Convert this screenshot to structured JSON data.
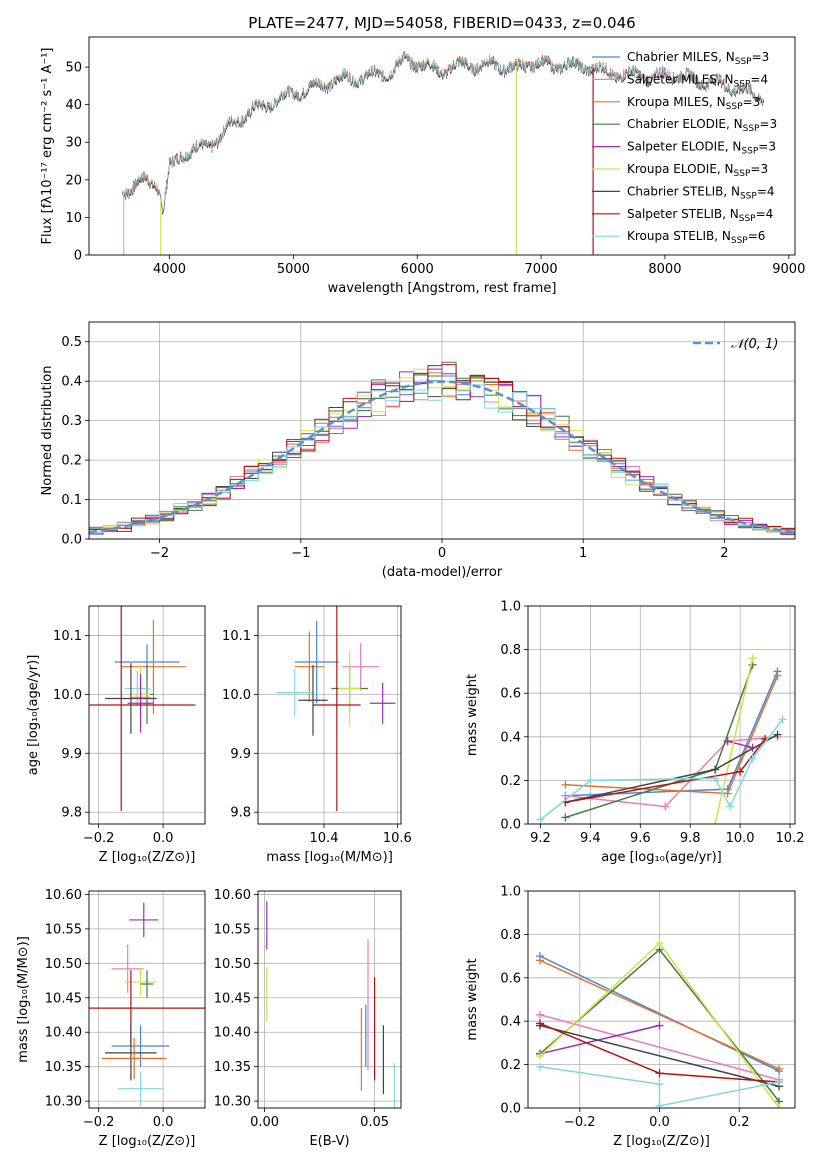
{
  "colors": {
    "chabrier_miles": "#4a86d6",
    "salpeter_miles": "#e87fb5",
    "kroupa_miles": "#e0742a",
    "chabrier_elodie": "#3f7f3f",
    "salpeter_elodie": "#9b2fb3",
    "kroupa_elodie": "#d4e04a",
    "chabrier_stelib": "#444444",
    "salpeter_stelib": "#b01515",
    "kroupa_stelib": "#7fd8e0"
  },
  "chart_data": [
    {
      "id": "spectrum",
      "type": "line",
      "title": "PLATE=2477, MJD=54058, FIBERID=0433, z=0.046",
      "xlabel": "wavelength [Angstrom, rest frame]",
      "ylabel": "Flux [fλ10⁻¹⁷ erg cm⁻² s⁻¹ A⁻¹]",
      "xlim": [
        3350,
        9050
      ],
      "ylim": [
        0,
        58
      ],
      "xticks": [
        4000,
        5000,
        6000,
        7000,
        8000,
        9000
      ],
      "yticks": [
        0,
        10,
        20,
        30,
        40,
        50
      ],
      "grid": false,
      "legend_position": "right",
      "legend": [
        "Chabrier MILES, N_SSP=3",
        "Salpeter MILES, N_SSP=4",
        "Kroupa MILES, N_SSP=3",
        "Chabrier ELODIE, N_SSP=3",
        "Salpeter ELODIE, N_SSP=3",
        "Kroupa ELODIE, N_SSP=3",
        "Chabrier STELIB, N_SSP=4",
        "Salpeter STELIB, N_SSP=4",
        "Kroupa STELIB, N_SSP=6"
      ],
      "continuum": {
        "x": [
          3620,
          3700,
          3800,
          3900,
          3950,
          4000,
          4100,
          4200,
          4300,
          4400,
          4500,
          4600,
          4700,
          4800,
          4900,
          5000,
          5100,
          5200,
          5300,
          5400,
          5500,
          5600,
          5700,
          5800,
          5900,
          6000,
          6100,
          6200,
          6300,
          6400,
          6500,
          6600,
          6700,
          6800,
          6900,
          7000,
          7100,
          7200,
          7300,
          7400,
          7500,
          7600,
          7700,
          7800,
          7900,
          8000,
          8100,
          8200,
          8300,
          8400,
          8500,
          8600,
          8700,
          8800
        ],
        "y": [
          17,
          18,
          20,
          19,
          12,
          23,
          27,
          28,
          29,
          31,
          35,
          37,
          39,
          40,
          42,
          43,
          44,
          45,
          46,
          47,
          47,
          47.5,
          48,
          49,
          52,
          51,
          50,
          49,
          50,
          51,
          50,
          51,
          50,
          49.5,
          51,
          51,
          50,
          51,
          50,
          50,
          49,
          48,
          48,
          48,
          47,
          48,
          48,
          47,
          46,
          46,
          45,
          44,
          43,
          42
        ]
      },
      "drop_lines": [
        {
          "x": 3630,
          "series": "kroupa_stelib"
        },
        {
          "x": 3930,
          "series": "kroupa_elodie"
        },
        {
          "x": 6800,
          "series": "kroupa_elodie"
        },
        {
          "x": 7420,
          "series": "salpeter_stelib"
        }
      ]
    },
    {
      "id": "residuals",
      "type": "histogram",
      "xlabel": "(data-model)/error",
      "ylabel": "Normed distribution",
      "xlim": [
        -2.5,
        2.5
      ],
      "ylim": [
        0,
        0.55
      ],
      "xticks": [
        -2,
        -1,
        0,
        1,
        2
      ],
      "yticks": [
        0.0,
        0.1,
        0.2,
        0.3,
        0.4,
        0.5
      ],
      "grid": true,
      "legend_position": "top-right",
      "legend": [
        "𝒩(0, 1)"
      ],
      "bin_width": 0.1,
      "range": [
        -2.5,
        2.5
      ],
      "reference": {
        "name": "𝒩(0, 1)",
        "mean": 0,
        "sigma": 1,
        "style": "dashed"
      }
    },
    {
      "id": "age_vs_z",
      "type": "errorbar",
      "xlabel": "Z [log₁₀(Z/Z⊙)]",
      "ylabel": "age  [log₁₀(age/yr)]",
      "xlim": [
        -0.23,
        0.13
      ],
      "ylim": [
        9.78,
        10.15
      ],
      "xticks": [
        -0.2,
        0.0
      ],
      "yticks": [
        9.8,
        9.9,
        10.0,
        10.1
      ],
      "grid": true,
      "points": [
        {
          "series": "chabrier_miles",
          "x": -0.05,
          "y": 10.055,
          "xerr": 0.1,
          "yerr": 0.03
        },
        {
          "series": "kroupa_miles",
          "x": -0.03,
          "y": 10.047,
          "xerr": 0.1,
          "yerr": 0.08
        },
        {
          "series": "chabrier_elodie",
          "x": -0.05,
          "y": 10.0,
          "xerr": 0.02,
          "yerr": 0.05
        },
        {
          "series": "kroupa_elodie",
          "x": -0.07,
          "y": 10.0,
          "xerr": 0.03,
          "yerr": 0.05
        },
        {
          "series": "kroupa_stelib",
          "x": -0.08,
          "y": 10.01,
          "xerr": 0.04,
          "yerr": 0.03
        },
        {
          "series": "salpeter_miles",
          "x": -0.07,
          "y": 9.995,
          "xerr": 0.03,
          "yerr": 0.03
        },
        {
          "series": "chabrier_stelib",
          "x": -0.1,
          "y": 9.993,
          "xerr": 0.08,
          "yerr": 0.06
        },
        {
          "series": "salpeter_elodie",
          "x": -0.07,
          "y": 9.985,
          "xerr": 0.04,
          "yerr": 0.05
        },
        {
          "series": "salpeter_stelib",
          "x": -0.13,
          "y": 9.982,
          "xerr": 0.23,
          "yerr": 0.18
        }
      ]
    },
    {
      "id": "age_vs_mass",
      "type": "errorbar",
      "xlabel": "mass [log₁₀(M/M⊙)]",
      "ylabel": "",
      "xlim": [
        10.22,
        10.61
      ],
      "ylim": [
        9.78,
        10.15
      ],
      "xticks": [
        10.4,
        10.6
      ],
      "yticks": [
        9.8,
        9.9,
        10.0,
        10.1
      ],
      "grid": true,
      "points": [
        {
          "series": "chabrier_miles",
          "x": 10.38,
          "y": 10.055,
          "xerr": 0.06,
          "yerr": 0.07
        },
        {
          "series": "kroupa_miles",
          "x": 10.36,
          "y": 10.047,
          "xerr": 0.04,
          "yerr": 0.06
        },
        {
          "series": "salpeter_miles",
          "x": 10.5,
          "y": 10.047,
          "xerr": 0.05,
          "yerr": 0.04
        },
        {
          "series": "chabrier_elodie",
          "x": 10.47,
          "y": 10.01,
          "xerr": 0.05,
          "yerr": 0.04
        },
        {
          "series": "kroupa_elodie",
          "x": 10.47,
          "y": 10.01,
          "xerr": 0.03,
          "yerr": 0.065
        },
        {
          "series": "kroupa_stelib",
          "x": 10.32,
          "y": 10.003,
          "xerr": 0.05,
          "yerr": 0.04
        },
        {
          "series": "chabrier_stelib",
          "x": 10.37,
          "y": 9.99,
          "xerr": 0.04,
          "yerr": 0.06
        },
        {
          "series": "salpeter_elodie",
          "x": 10.56,
          "y": 9.985,
          "xerr": 0.035,
          "yerr": 0.035
        },
        {
          "series": "salpeter_stelib",
          "x": 10.435,
          "y": 9.982,
          "xerr": 0.065,
          "yerr": 0.18
        }
      ]
    },
    {
      "id": "weight_vs_age",
      "type": "line",
      "xlabel": "age  [log₁₀(age/yr)]",
      "ylabel": "mass weight",
      "xlim": [
        9.15,
        10.22
      ],
      "ylim": [
        0,
        1.0
      ],
      "xticks": [
        9.2,
        9.4,
        9.6,
        9.8,
        10.0,
        10.2
      ],
      "yticks": [
        0.0,
        0.2,
        0.4,
        0.6,
        0.8,
        1.0
      ],
      "grid": true,
      "series": [
        {
          "key": "chabrier_miles",
          "x": [
            9.3,
            9.95,
            10.15
          ],
          "y": [
            0.13,
            0.16,
            0.7
          ]
        },
        {
          "key": "salpeter_miles",
          "x": [
            9.3,
            9.7,
            9.95,
            10.15
          ],
          "y": [
            0.13,
            0.08,
            0.38,
            0.4
          ]
        },
        {
          "key": "kroupa_miles",
          "x": [
            9.3,
            9.95,
            10.15
          ],
          "y": [
            0.18,
            0.14,
            0.68
          ]
        },
        {
          "key": "chabrier_elodie",
          "x": [
            9.3,
            9.9,
            10.05
          ],
          "y": [
            0.03,
            0.25,
            0.73
          ]
        },
        {
          "key": "salpeter_elodie",
          "x": [
            9.95,
            10.05
          ],
          "y": [
            0.38,
            0.35
          ]
        },
        {
          "key": "kroupa_elodie",
          "x": [
            9.9,
            10.05
          ],
          "y": [
            0.0,
            0.76
          ]
        },
        {
          "key": "chabrier_stelib",
          "x": [
            9.3,
            9.9,
            10.15
          ],
          "y": [
            0.1,
            0.25,
            0.41
          ]
        },
        {
          "key": "salpeter_stelib",
          "x": [
            9.3,
            10.0,
            10.1
          ],
          "y": [
            0.1,
            0.24,
            0.39
          ]
        },
        {
          "key": "kroupa_stelib",
          "x": [
            9.2,
            9.4,
            9.9,
            9.96,
            10.05,
            10.17
          ],
          "y": [
            0.02,
            0.2,
            0.21,
            0.08,
            0.3,
            0.48
          ]
        }
      ]
    },
    {
      "id": "mass_vs_z",
      "type": "errorbar",
      "xlabel": "Z [log₁₀(Z/Z⊙)]",
      "ylabel": "mass [log₁₀(M/M⊙)]",
      "xlim": [
        -0.23,
        0.13
      ],
      "ylim": [
        10.29,
        10.605
      ],
      "xticks": [
        -0.2,
        0.0
      ],
      "yticks": [
        10.3,
        10.35,
        10.4,
        10.45,
        10.5,
        10.55,
        10.6
      ],
      "grid": true,
      "points": [
        {
          "series": "salpeter_elodie",
          "x": -0.06,
          "y": 10.563,
          "xerr": 0.045,
          "yerr": 0.025
        },
        {
          "series": "salpeter_miles",
          "x": -0.11,
          "y": 10.492,
          "xerr": 0.05,
          "yerr": 0.035
        },
        {
          "series": "kroupa_elodie",
          "x": -0.07,
          "y": 10.473,
          "xerr": 0.05,
          "yerr": 0.02
        },
        {
          "series": "chabrier_elodie",
          "x": -0.05,
          "y": 10.47,
          "xerr": 0.02,
          "yerr": 0.02
        },
        {
          "series": "salpeter_stelib",
          "x": -0.1,
          "y": 10.435,
          "xerr": 0.23,
          "yerr": 0.055
        },
        {
          "series": "chabrier_miles",
          "x": -0.07,
          "y": 10.38,
          "xerr": 0.09,
          "yerr": 0.03
        },
        {
          "series": "chabrier_stelib",
          "x": -0.1,
          "y": 10.37,
          "xerr": 0.08,
          "yerr": 0.04
        },
        {
          "series": "kroupa_miles",
          "x": -0.09,
          "y": 10.362,
          "xerr": 0.1,
          "yerr": 0.03
        },
        {
          "series": "kroupa_stelib",
          "x": -0.07,
          "y": 10.318,
          "xerr": 0.07,
          "yerr": 0.025
        }
      ]
    },
    {
      "id": "mass_vs_ebv",
      "type": "errorbar",
      "xlabel": "E(B-V)",
      "ylabel": "",
      "xlim": [
        -0.003,
        0.062
      ],
      "ylim": [
        10.29,
        10.605
      ],
      "xticks": [
        0.0,
        0.05
      ],
      "yticks": [
        10.3,
        10.35,
        10.4,
        10.45,
        10.5,
        10.55,
        10.6
      ],
      "grid": true,
      "points": [
        {
          "series": "salpeter_elodie",
          "x": 0.001,
          "y": 10.555,
          "xerr": 0,
          "yerr": 0.035
        },
        {
          "series": "kroupa_elodie",
          "x": 0.001,
          "y": 10.455,
          "xerr": 0,
          "yerr": 0.04
        },
        {
          "series": "chabrier_miles",
          "x": 0.046,
          "y": 10.395,
          "xerr": 0,
          "yerr": 0.045
        },
        {
          "series": "salpeter_miles",
          "x": 0.047,
          "y": 10.44,
          "xerr": 0,
          "yerr": 0.095
        },
        {
          "series": "kroupa_miles",
          "x": 0.044,
          "y": 10.375,
          "xerr": 0,
          "yerr": 0.06
        },
        {
          "series": "salpeter_stelib",
          "x": 0.05,
          "y": 10.405,
          "xerr": 0,
          "yerr": 0.075
        },
        {
          "series": "chabrier_stelib",
          "x": 0.054,
          "y": 10.36,
          "xerr": 0,
          "yerr": 0.05
        },
        {
          "series": "kroupa_stelib",
          "x": 0.059,
          "y": 10.32,
          "xerr": 0,
          "yerr": 0.035
        }
      ]
    },
    {
      "id": "weight_vs_z",
      "type": "line",
      "xlabel": "Z [log₁₀(Z/Z⊙)]",
      "ylabel": "mass weight",
      "xlim": [
        -0.33,
        0.34
      ],
      "ylim": [
        0,
        1.0
      ],
      "xticks": [
        -0.2,
        0.0,
        0.2
      ],
      "yticks": [
        0.0,
        0.2,
        0.4,
        0.6,
        0.8,
        1.0
      ],
      "grid": true,
      "series": [
        {
          "key": "chabrier_miles",
          "x": [
            -0.3,
            0.3
          ],
          "y": [
            0.7,
            0.17
          ]
        },
        {
          "key": "salpeter_miles",
          "x": [
            -0.3,
            0.3
          ],
          "y": [
            0.43,
            0.13
          ]
        },
        {
          "key": "kroupa_miles",
          "x": [
            -0.3,
            0.3
          ],
          "y": [
            0.68,
            0.18
          ]
        },
        {
          "key": "chabrier_elodie",
          "x": [
            -0.3,
            0.0,
            0.3
          ],
          "y": [
            0.25,
            0.73,
            0.03
          ]
        },
        {
          "key": "salpeter_elodie",
          "x": [
            -0.3,
            0.0
          ],
          "y": [
            0.25,
            0.38
          ]
        },
        {
          "key": "kroupa_elodie",
          "x": [
            -0.3,
            0.0,
            0.3
          ],
          "y": [
            0.24,
            0.76,
            0.0
          ]
        },
        {
          "key": "chabrier_stelib",
          "x": [
            -0.3,
            0.3
          ],
          "y": [
            0.38,
            0.1
          ]
        },
        {
          "key": "salpeter_stelib",
          "x": [
            -0.3,
            0.0,
            0.3
          ],
          "y": [
            0.39,
            0.16,
            0.12
          ]
        },
        {
          "key": "kroupa_stelib",
          "x": [
            -0.3,
            0.0,
            0.0,
            0.3
          ],
          "y": [
            0.19,
            0.11,
            0.01,
            0.12
          ]
        }
      ]
    }
  ]
}
